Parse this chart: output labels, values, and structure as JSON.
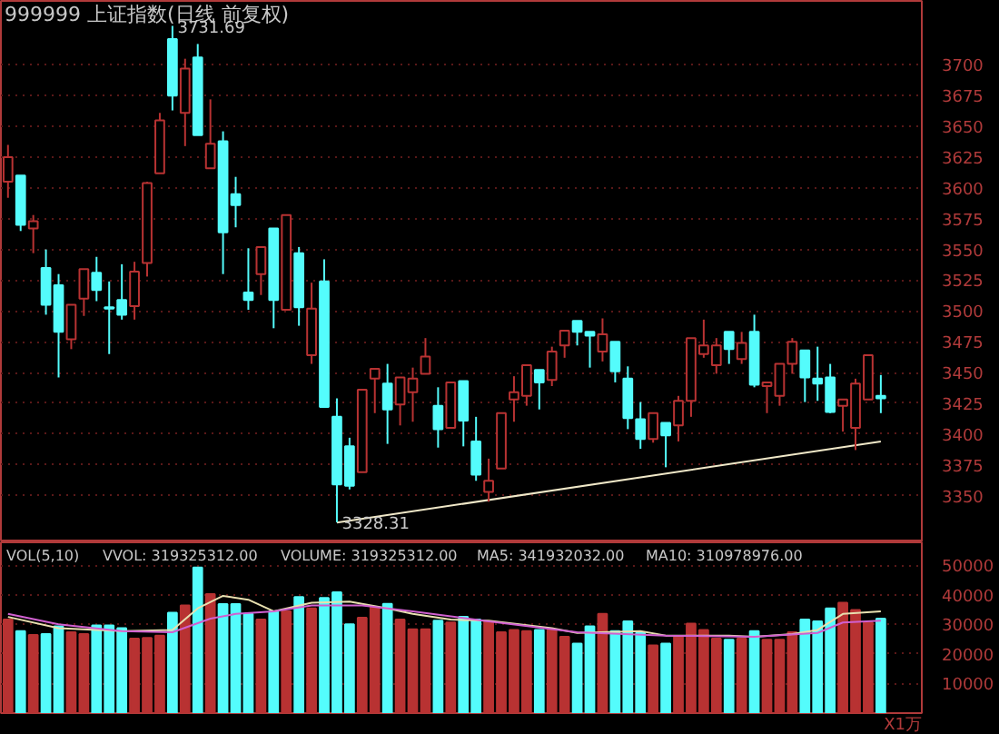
{
  "chart_data": [
    {
      "type": "candlestick",
      "title": "999999 上证指数(日线 前复权)",
      "categories": [
        null,
        null,
        null,
        null,
        null,
        null,
        null,
        null,
        null,
        null,
        null,
        null,
        null,
        null,
        null,
        null,
        null,
        null,
        null,
        null,
        null,
        null,
        null,
        null,
        null,
        null,
        null,
        null,
        null,
        null,
        null,
        null,
        null,
        null,
        null,
        null,
        null,
        null,
        null,
        null,
        null,
        null,
        null,
        null,
        null,
        null,
        null,
        null,
        null,
        null,
        null,
        null,
        null,
        null,
        null,
        null,
        null,
        null,
        null,
        null,
        null,
        null,
        null,
        null,
        null,
        null,
        null,
        null,
        null,
        null
      ],
      "ohlc": [
        [
          3605,
          3635,
          3592,
          3625
        ],
        [
          3610,
          3610,
          3565,
          3570
        ],
        [
          3567,
          3578,
          3547,
          3573
        ],
        [
          3535,
          3550,
          3497,
          3505
        ],
        [
          3521,
          3530,
          3446,
          3483
        ],
        [
          3477,
          3505,
          3469,
          3505
        ],
        [
          3510,
          3534,
          3496,
          3534
        ],
        [
          3531,
          3544,
          3508,
          3517
        ],
        [
          3503,
          3524,
          3465,
          3502
        ],
        [
          3509,
          3538,
          3493,
          3497
        ],
        [
          3504,
          3540,
          3493,
          3532
        ],
        [
          3539,
          3605,
          3528,
          3604
        ],
        [
          3612,
          3661,
          3612,
          3655
        ],
        [
          3721,
          3731.69,
          3663,
          3675
        ],
        [
          3661,
          3705,
          3634,
          3697
        ],
        [
          3706,
          3717,
          3643,
          3643
        ],
        [
          3616,
          3672,
          3616,
          3636
        ],
        [
          3638,
          3646,
          3530,
          3564
        ],
        [
          3595,
          3609,
          3568,
          3586
        ],
        [
          3515,
          3551,
          3501,
          3509
        ],
        [
          3530,
          3552,
          3513,
          3552
        ],
        [
          3567,
          3567,
          3486,
          3509
        ],
        [
          3501,
          3578,
          3501,
          3578
        ],
        [
          3547,
          3552,
          3488,
          3503
        ],
        [
          3464,
          3523,
          3457,
          3502
        ],
        [
          3524,
          3542,
          3422,
          3422
        ],
        [
          3414,
          3429,
          3328.31,
          3359
        ],
        [
          3390,
          3397,
          3355,
          3358
        ],
        [
          3369,
          3436,
          3369,
          3436
        ],
        [
          3445,
          3453,
          3417,
          3453
        ],
        [
          3441,
          3457,
          3392,
          3420
        ],
        [
          3424,
          3446,
          3407,
          3446
        ],
        [
          3434,
          3454,
          3410,
          3445
        ],
        [
          3449,
          3478,
          3449,
          3463
        ],
        [
          3423,
          3438,
          3389,
          3404
        ],
        [
          3405,
          3442,
          3405,
          3442
        ],
        [
          3443,
          3443,
          3390,
          3411
        ],
        [
          3394,
          3414,
          3362,
          3367
        ],
        [
          3353,
          3380,
          3345,
          3362
        ],
        [
          3372,
          3417,
          3372,
          3417
        ],
        [
          3428,
          3447,
          3410,
          3434
        ],
        [
          3431,
          3456,
          3423,
          3456
        ],
        [
          3452,
          3452,
          3420,
          3442
        ],
        [
          3444,
          3471,
          3439,
          3467
        ],
        [
          3472,
          3484,
          3462,
          3484
        ],
        [
          3492,
          3492,
          3472,
          3483
        ],
        [
          3483,
          3483,
          3454,
          3480
        ],
        [
          3467,
          3494,
          3459,
          3481
        ],
        [
          3475,
          3475,
          3442,
          3451
        ],
        [
          3445,
          3455,
          3404,
          3413
        ],
        [
          3412,
          3426,
          3388,
          3396
        ],
        [
          3396,
          3417,
          3393,
          3417
        ],
        [
          3409,
          3409,
          3373,
          3399
        ],
        [
          3407,
          3431,
          3394,
          3427
        ],
        [
          3427,
          3478,
          3414,
          3478
        ],
        [
          3465,
          3493,
          3462,
          3472
        ],
        [
          3456,
          3478,
          3449,
          3472
        ],
        [
          3483,
          3483,
          3457,
          3469
        ],
        [
          3461,
          3483,
          3457,
          3474
        ],
        [
          3483,
          3497,
          3438,
          3440
        ],
        [
          3439,
          3442,
          3417,
          3442
        ],
        [
          3431,
          3457,
          3423,
          3457
        ],
        [
          3457,
          3478,
          3449,
          3475
        ],
        [
          3468,
          3468,
          3426,
          3446
        ],
        [
          3445,
          3471,
          3427,
          3441
        ],
        [
          3446,
          3457,
          3417,
          3418
        ],
        [
          3423,
          3428,
          3402,
          3428
        ],
        [
          3405,
          3445,
          3387,
          3441
        ],
        [
          3428,
          3464,
          3428,
          3464
        ],
        [
          3431,
          3448,
          3417,
          3429
        ]
      ],
      "colors": [
        "#b83232",
        "#54fcfc",
        "#b83232",
        "#54fcfc",
        "#54fcfc",
        "#b83232",
        "#b83232",
        "#54fcfc",
        "#54fcfc",
        "#54fcfc",
        "#b83232",
        "#b83232",
        "#b83232",
        "#54fcfc",
        "#b83232",
        "#54fcfc",
        "#b83232",
        "#54fcfc",
        "#54fcfc",
        "#54fcfc",
        "#b83232",
        "#54fcfc",
        "#b83232",
        "#54fcfc",
        "#b83232",
        "#54fcfc",
        "#54fcfc",
        "#54fcfc",
        "#b83232",
        "#b83232",
        "#54fcfc",
        "#b83232",
        "#b83232",
        "#b83232",
        "#54fcfc",
        "#b83232",
        "#54fcfc",
        "#54fcfc",
        "#b83232",
        "#b83232",
        "#b83232",
        "#b83232",
        "#54fcfc",
        "#b83232",
        "#b83232",
        "#54fcfc",
        "#54fcfc",
        "#b83232",
        "#54fcfc",
        "#54fcfc",
        "#54fcfc",
        "#b83232",
        "#54fcfc",
        "#b83232",
        "#b83232",
        "#b83232",
        "#b83232",
        "#54fcfc",
        "#b83232",
        "#54fcfc",
        "#b83232",
        "#b83232",
        "#b83232",
        "#54fcfc",
        "#54fcfc",
        "#54fcfc",
        "#b83232",
        "#b83232",
        "#b83232",
        "#54fcfc"
      ],
      "series": [
        {
          "type": "line",
          "color": "#f0e8c8",
          "values": [
            null,
            null,
            null,
            null,
            null,
            null,
            null,
            null,
            null,
            null,
            null,
            null,
            null,
            null,
            null,
            null,
            null,
            null,
            null,
            null,
            null,
            null,
            null,
            null,
            null,
            null,
            3328,
            null,
            null,
            null,
            null,
            null,
            null,
            null,
            null,
            null,
            null,
            null,
            null,
            null,
            null,
            null,
            null,
            null,
            null,
            null,
            null,
            null,
            null,
            null,
            null,
            null,
            null,
            null,
            null,
            null,
            null,
            null,
            null,
            null,
            null,
            null,
            null,
            null,
            null,
            null,
            null,
            null,
            null,
            3394
          ]
        }
      ],
      "ylim": [
        3312,
        3752
      ],
      "yticks": [
        3350,
        3375,
        3400,
        3425,
        3450,
        3475,
        3500,
        3525,
        3550,
        3575,
        3600,
        3625,
        3650,
        3675,
        3700
      ],
      "grid": "y",
      "annotations": [
        "3731.69",
        "3328.31"
      ]
    },
    {
      "type": "bar",
      "title": "VOL(5,10)",
      "ylabel": "X1万",
      "categories": [
        null,
        null,
        null,
        null,
        null,
        null,
        null,
        null,
        null,
        null,
        null,
        null,
        null,
        null,
        null,
        null,
        null,
        null,
        null,
        null,
        null,
        null,
        null,
        null,
        null,
        null,
        null,
        null,
        null,
        null,
        null,
        null,
        null,
        null,
        null,
        null,
        null,
        null,
        null,
        null,
        null,
        null,
        null,
        null,
        null,
        null,
        null,
        null,
        null,
        null,
        null,
        null,
        null,
        null,
        null,
        null,
        null,
        null,
        null,
        null,
        null,
        null,
        null,
        null,
        null,
        null,
        null,
        null,
        null,
        null
      ],
      "series": [
        {
          "type": "bar",
          "colors": [
            "#b83232",
            "#54fcfc",
            "#b83232",
            "#54fcfc",
            "#54fcfc",
            "#b83232",
            "#b83232",
            "#54fcfc",
            "#54fcfc",
            "#54fcfc",
            "#b83232",
            "#b83232",
            "#b83232",
            "#54fcfc",
            "#b83232",
            "#54fcfc",
            "#b83232",
            "#54fcfc",
            "#54fcfc",
            "#54fcfc",
            "#b83232",
            "#54fcfc",
            "#b83232",
            "#54fcfc",
            "#b83232",
            "#54fcfc",
            "#54fcfc",
            "#54fcfc",
            "#b83232",
            "#b83232",
            "#54fcfc",
            "#b83232",
            "#b83232",
            "#b83232",
            "#54fcfc",
            "#b83232",
            "#54fcfc",
            "#54fcfc",
            "#b83232",
            "#b83232",
            "#b83232",
            "#b83232",
            "#54fcfc",
            "#b83232",
            "#b83232",
            "#54fcfc",
            "#54fcfc",
            "#b83232",
            "#54fcfc",
            "#54fcfc",
            "#54fcfc",
            "#b83232",
            "#54fcfc",
            "#b83232",
            "#b83232",
            "#b83232",
            "#b83232",
            "#54fcfc",
            "#b83232",
            "#54fcfc",
            "#b83232",
            "#b83232",
            "#b83232",
            "#54fcfc",
            "#54fcfc",
            "#54fcfc",
            "#b83232",
            "#b83232",
            "#b83232",
            "#54fcfc"
          ],
          "values": [
            31600,
            27700,
            26400,
            26700,
            29300,
            27300,
            26700,
            29600,
            29600,
            28700,
            25200,
            25400,
            26200,
            33900,
            36400,
            49200,
            40200,
            36800,
            36800,
            33500,
            31600,
            34400,
            34400,
            39200,
            35400,
            38900,
            40800,
            30000,
            32200,
            35800,
            36900,
            31600,
            28300,
            28300,
            31200,
            30600,
            32500,
            31600,
            31000,
            27300,
            28100,
            27700,
            28100,
            28100,
            25800,
            23500,
            29300,
            33500,
            27700,
            31000,
            27100,
            22900,
            23500,
            25800,
            30200,
            28100,
            25200,
            24800,
            25200,
            27700,
            24800,
            24800,
            27300,
            31600,
            31000,
            35400,
            37300,
            34800,
            30600,
            31900
          ]
        },
        {
          "type": "line",
          "color": "#e8e0b0",
          "values": [
            32500,
            null,
            null,
            null,
            28700,
            null,
            null,
            null,
            null,
            27700,
            null,
            null,
            null,
            28100,
            null,
            35400,
            null,
            39600,
            null,
            38300,
            null,
            34400,
            null,
            null,
            37300,
            null,
            null,
            37700,
            null,
            null,
            35400,
            null,
            33500,
            null,
            null,
            31600,
            null,
            null,
            31200,
            null,
            null,
            null,
            null,
            28700,
            null,
            27100,
            null,
            null,
            null,
            null,
            27700,
            null,
            26200,
            null,
            null,
            null,
            null,
            26200,
            null,
            25800,
            null,
            null,
            26700,
            null,
            28100,
            null,
            33500,
            null,
            null,
            34400
          ]
        },
        {
          "type": "line",
          "color": "#d060d0",
          "values": [
            33500,
            null,
            null,
            null,
            30000,
            null,
            null,
            null,
            null,
            27700,
            null,
            null,
            null,
            27300,
            null,
            null,
            31900,
            null,
            33500,
            null,
            null,
            34400,
            null,
            null,
            36400,
            null,
            null,
            null,
            36400,
            null,
            null,
            null,
            34400,
            null,
            null,
            null,
            null,
            null,
            31000,
            null,
            null,
            null,
            null,
            null,
            null,
            27300,
            null,
            null,
            null,
            null,
            null,
            null,
            26200,
            null,
            null,
            null,
            null,
            null,
            null,
            25800,
            null,
            null,
            null,
            null,
            27100,
            null,
            30600,
            null,
            null,
            31200
          ]
        }
      ],
      "ylim": [
        0,
        57700
      ],
      "yticks": [
        10000,
        20000,
        30000,
        40000,
        50000
      ],
      "grid": "y",
      "annotations": [
        "VVOL: 319325312.00",
        "VOLUME: 319325312.00",
        "MA5: 341932032.00",
        "MA10: 310978976.00"
      ]
    }
  ]
}
